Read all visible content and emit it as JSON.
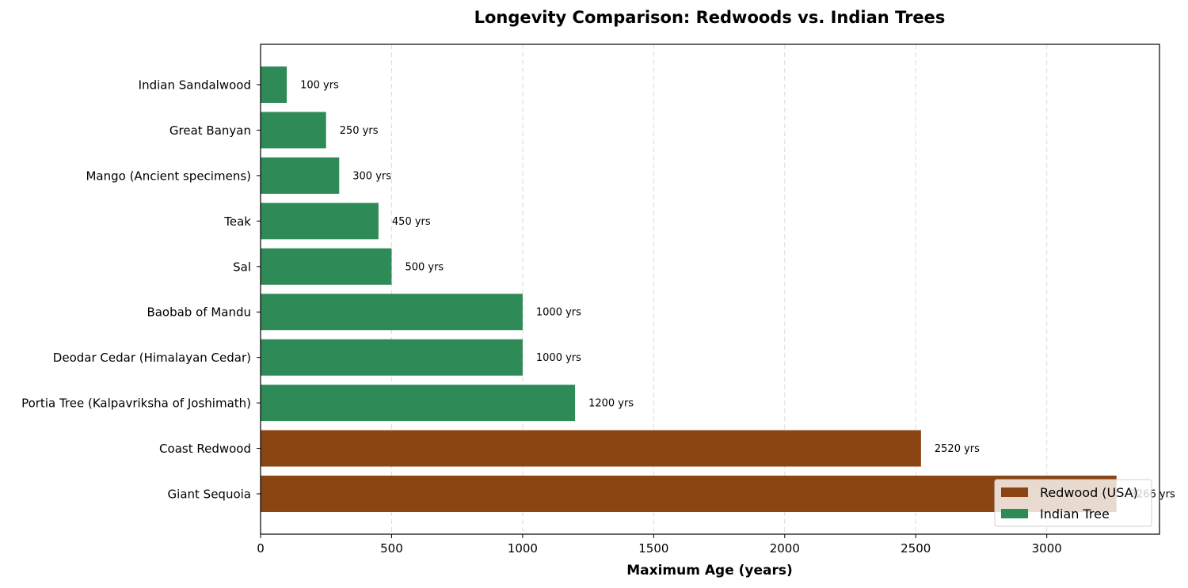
{
  "chart_data": {
    "type": "bar",
    "orientation": "horizontal",
    "title": "Longevity Comparison: Redwoods vs. Indian Trees",
    "xlabel": "Maximum Age (years)",
    "ylabel": "",
    "xlim": [
      0,
      3430
    ],
    "xticks": [
      0,
      500,
      1000,
      1500,
      2000,
      2500,
      3000
    ],
    "xtick_labels": [
      "0",
      "500",
      "1000",
      "1500",
      "2000",
      "2500",
      "3000"
    ],
    "grid": "x-dashed",
    "legend_position": "bottom-right",
    "categories": [
      "Indian Sandalwood",
      "Great Banyan",
      "Mango (Ancient specimens)",
      "Teak",
      "Sal",
      "Baobab of Mandu",
      "Deodar Cedar (Himalayan Cedar)",
      "Portia Tree (Kalpavriksha of Joshimath)",
      "Coast Redwood",
      "Giant Sequoia"
    ],
    "values": [
      100,
      250,
      300,
      450,
      500,
      1000,
      1000,
      1200,
      2520,
      3266
    ],
    "groups": [
      "Indian Tree",
      "Indian Tree",
      "Indian Tree",
      "Indian Tree",
      "Indian Tree",
      "Indian Tree",
      "Indian Tree",
      "Indian Tree",
      "Redwood (USA)",
      "Redwood (USA)"
    ],
    "data_labels": [
      "100 yrs",
      "250 yrs",
      "300 yrs",
      "450 yrs",
      "500 yrs",
      "1000 yrs",
      "1000 yrs",
      "1200 yrs",
      "2520 yrs",
      "3266 yrs"
    ],
    "legend": [
      {
        "name": "Redwood (USA)",
        "color": "#8B4513"
      },
      {
        "name": "Indian Tree",
        "color": "#2E8B57"
      }
    ]
  }
}
